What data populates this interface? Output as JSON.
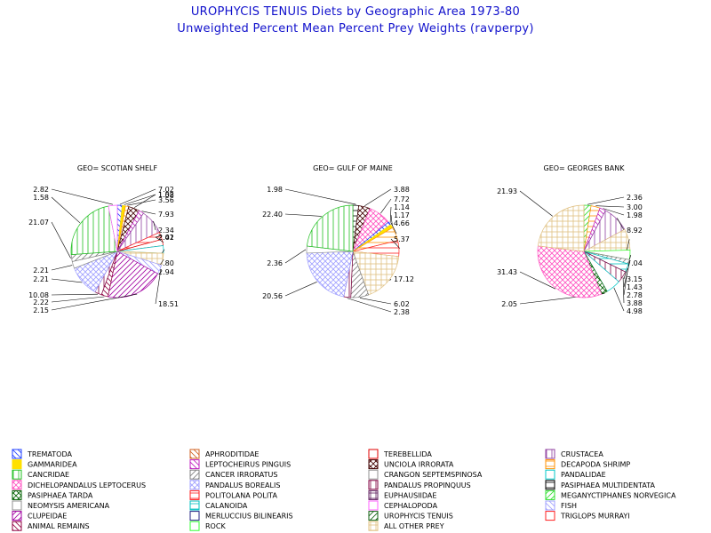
{
  "title": "UROPHYCIS TENUIS Diets by Geographic Area 1973-80",
  "subtitle": "Unweighted Percent Mean Percent Prey  Weights (ravperpy)",
  "categories": [
    {
      "name": "TREMATODA",
      "color": "#2040ff",
      "pattern": "diag-down"
    },
    {
      "name": "GAMMARIDEA",
      "color": "#ffe000",
      "pattern": "solid"
    },
    {
      "name": "CANCRIDAE",
      "color": "#20c020",
      "pattern": "vlines"
    },
    {
      "name": "DICHELOPANDALUS LEPTOCERUS",
      "color": "#ff50c0",
      "pattern": "cross-diag"
    },
    {
      "name": "PASIPHAEA TARDA",
      "color": "#006000",
      "pattern": "cross-diag"
    },
    {
      "name": "NEOMYSIS AMERICANA",
      "color": "#909090",
      "pattern": "empty"
    },
    {
      "name": "CLUPEIDAE",
      "color": "#a000a0",
      "pattern": "diag-up"
    },
    {
      "name": "ANIMAL REMAINS",
      "color": "#900040",
      "pattern": "diag-down"
    },
    {
      "name": "APHRODITIDAE",
      "color": "#d06020",
      "pattern": "diag-down"
    },
    {
      "name": "LEPTOCHEIRUS PINGUIS",
      "color": "#c020c0",
      "pattern": "diag-down"
    },
    {
      "name": "CANCER IRRORATUS",
      "color": "#808080",
      "pattern": "diag-up"
    },
    {
      "name": "PANDALUS BOREALIS",
      "color": "#a0a0ff",
      "pattern": "cross-diag"
    },
    {
      "name": "POLITOLANA POLITA",
      "color": "#ff2020",
      "pattern": "hlines"
    },
    {
      "name": "CALANOIDA",
      "color": "#00c0c0",
      "pattern": "hlines"
    },
    {
      "name": "MERLUCCIUS BILINEARIS",
      "color": "#202080",
      "pattern": "empty"
    },
    {
      "name": "ROCK",
      "color": "#30ff30",
      "pattern": "empty"
    },
    {
      "name": "TEREBELLIDA",
      "color": "#e00000",
      "pattern": "empty"
    },
    {
      "name": "UNCIOLA IRRORATA",
      "color": "#400000",
      "pattern": "cross-diag"
    },
    {
      "name": "CRANGON SEPTEMSPINOSA",
      "color": "#909090",
      "pattern": "empty"
    },
    {
      "name": "PANDALUS PROPINQUUS",
      "color": "#800040",
      "pattern": "vlines"
    },
    {
      "name": "EUPHAUSIIDAE",
      "color": "#602060",
      "pattern": "grid"
    },
    {
      "name": "CEPHALOPODA",
      "color": "#ff60ff",
      "pattern": "empty"
    },
    {
      "name": "UROPHYCIS TENUIS",
      "color": "#106010",
      "pattern": "diag-up"
    },
    {
      "name": "ALL OTHER PREY",
      "color": "#e0c080",
      "pattern": "grid"
    },
    {
      "name": "CRUSTACEA",
      "color": "#9040a0",
      "pattern": "vlines"
    },
    {
      "name": "DECAPODA SHRIMP",
      "color": "#ff9000",
      "pattern": "hlines"
    },
    {
      "name": "PANDALIDAE",
      "color": "#00c8c8",
      "pattern": "empty"
    },
    {
      "name": "PASIPHAEA MULTIDENTATA",
      "color": "#000000",
      "pattern": "hlines"
    },
    {
      "name": "MEGANYCTIPHANES NORVEGICA",
      "color": "#30e030",
      "pattern": "diag-up"
    },
    {
      "name": "FISH",
      "color": "#a0a0ff",
      "pattern": "diag-down"
    },
    {
      "name": "TRIGLOPS MURRAYI",
      "color": "#ff2020",
      "pattern": "empty"
    }
  ],
  "chart_data": [
    {
      "type": "pie",
      "title": "GEO= SCOTIAN SHELF",
      "slices": [
        {
          "category": "TREMATODA",
          "value": 1.58
        },
        {
          "category": "GAMMARIDEA",
          "value": 1.02
        },
        {
          "category": "DECAPODA SHRIMP",
          "value": 1.02
        },
        {
          "category": "UNCIOLA IRRORATA",
          "value": 3.56
        },
        {
          "category": "LEPTOCHEIRUS PINGUIS",
          "value": 1.58
        },
        {
          "category": "CRUSTACEA",
          "value": 7.93
        },
        {
          "category": "POLITOLANA POLITA",
          "value": 2.34
        },
        {
          "category": "TEREBELLIDA",
          "value": 2.02
        },
        {
          "category": "PANDALIDAE",
          "value": 2.41
        },
        {
          "category": "ALL OTHER PREY",
          "value": 3.8
        },
        {
          "category": "FISH",
          "value": 2.94
        },
        {
          "category": "CLUPEIDAE",
          "value": 18.51
        },
        {
          "category": "ANIMAL REMAINS",
          "value": 2.15
        },
        {
          "category": "PANDALUS PROPINQUUS",
          "value": 2.22
        },
        {
          "category": "PANDALUS BOREALIS",
          "value": 10.08
        },
        {
          "category": "NEOMYSIS AMERICANA",
          "value": 2.21
        },
        {
          "category": "CANCER IRRORATUS",
          "value": 2.21
        },
        {
          "category": "CANCRIDAE",
          "value": 21.07
        },
        {
          "category": "CEPHALOPODA",
          "value": 2.82
        }
      ],
      "labels": [
        {
          "text": "7.02"
        },
        {
          "text": "1.02"
        },
        {
          "text": "3.56"
        },
        {
          "text": "1.58"
        },
        {
          "text": "7.93"
        },
        {
          "text": "2.34"
        },
        {
          "text": "2.02"
        },
        {
          "text": "2.41"
        },
        {
          "text": "3.80"
        },
        {
          "text": "2.94"
        },
        {
          "text": "18.51"
        },
        {
          "text": "2.15"
        },
        {
          "text": "2.22"
        },
        {
          "text": "10.08"
        },
        {
          "text": "2.21"
        },
        {
          "text": "2.21"
        },
        {
          "text": "21.07"
        },
        {
          "text": "1.58"
        },
        {
          "text": "2.82"
        }
      ]
    },
    {
      "type": "pie",
      "title": "GEO= GULF OF MAINE",
      "slices": [
        {
          "category": "PASIPHAEA MULTIDENTATA",
          "value": 1.98
        },
        {
          "category": "UNCIOLA IRRORATA",
          "value": 3.88
        },
        {
          "category": "DICHELOPANDALUS LEPTOCERUS",
          "value": 7.72
        },
        {
          "category": "TREMATODA",
          "value": 1.14
        },
        {
          "category": "GAMMARIDEA",
          "value": 1.17
        },
        {
          "category": "DECAPODA SHRIMP",
          "value": 4.66
        },
        {
          "category": "POLITOLANA POLITA",
          "value": 5.37
        },
        {
          "category": "ALL OTHER PREY",
          "value": 17.12
        },
        {
          "category": "CANCER IRRORATUS",
          "value": 6.02
        },
        {
          "category": "PANDALUS PROPINQUUS",
          "value": 2.38
        },
        {
          "category": "PANDALUS BOREALIS",
          "value": 20.56
        },
        {
          "category": "NEOMYSIS AMERICANA",
          "value": 2.36
        },
        {
          "category": "CANCRIDAE",
          "value": 22.4
        }
      ],
      "labels": [
        {
          "text": "1.98"
        },
        {
          "text": "3.88"
        },
        {
          "text": "7.72"
        },
        {
          "text": "1.14"
        },
        {
          "text": "1.17"
        },
        {
          "text": "4.66"
        },
        {
          "text": "5.37"
        },
        {
          "text": "17.12"
        },
        {
          "text": "6.02"
        },
        {
          "text": "2.38"
        },
        {
          "text": "20.56"
        },
        {
          "text": "2.36"
        },
        {
          "text": "22.40"
        }
      ]
    },
    {
      "type": "pie",
      "title": "GEO= GEORGES BANK",
      "slices": [
        {
          "category": "MEGANYCTIPHANES NORVEGICA",
          "value": 2.36
        },
        {
          "category": "DECAPODA SHRIMP",
          "value": 3.0
        },
        {
          "category": "LEPTOCHEIRUS PINGUIS",
          "value": 1.98
        },
        {
          "category": "CRUSTACEA",
          "value": 8.92
        },
        {
          "category": "ALL OTHER PREY",
          "value": 7.04
        },
        {
          "category": "ROCK",
          "value": 3.15
        },
        {
          "category": "CANCER IRRORATUS",
          "value": 1.43
        },
        {
          "category": "CALANOIDA",
          "value": 2.78
        },
        {
          "category": "PANDALUS PROPINQUUS",
          "value": 3.88
        },
        {
          "category": "PANDALIDAE",
          "value": 4.98
        },
        {
          "category": "PASIPHAEA TARDA",
          "value": 2.05
        },
        {
          "category": "DICHELOPANDALUS LEPTOCERUS",
          "value": 31.43
        },
        {
          "category": "ALL OTHER PREY",
          "value": 21.93
        }
      ],
      "labels": [
        {
          "text": "2.36"
        },
        {
          "text": "3.00"
        },
        {
          "text": "1.98"
        },
        {
          "text": "8.92"
        },
        {
          "text": "7.04"
        },
        {
          "text": "3.15"
        },
        {
          "text": "1.43"
        },
        {
          "text": "2.78"
        },
        {
          "text": "3.88"
        },
        {
          "text": "4.98"
        },
        {
          "text": "2.05"
        },
        {
          "text": "31.43"
        },
        {
          "text": "21.93"
        }
      ]
    }
  ]
}
